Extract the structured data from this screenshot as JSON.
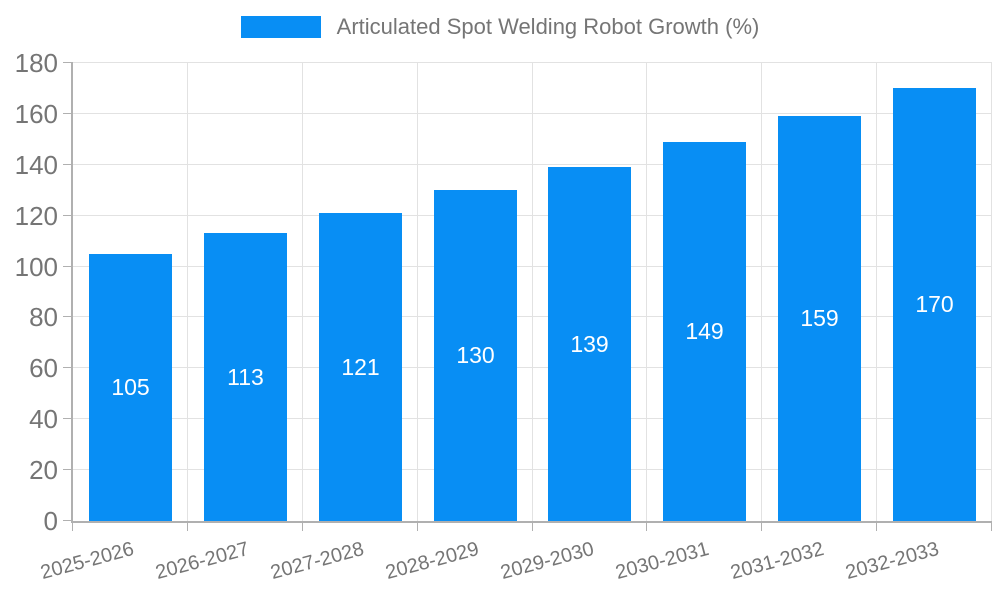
{
  "legend": {
    "label": "Articulated Spot Welding Robot Growth (%)"
  },
  "chart_data": {
    "type": "bar",
    "title": "",
    "series_name": "Articulated Spot Welding Robot Growth (%)",
    "categories": [
      "2025-2026",
      "2026-2027",
      "2027-2028",
      "2028-2029",
      "2029-2030",
      "2030-2031",
      "2031-2032",
      "2032-2033"
    ],
    "values": [
      105,
      113,
      121,
      130,
      139,
      149,
      159,
      170
    ],
    "xlabel": "",
    "ylabel": "",
    "ylim": [
      0,
      180
    ],
    "yticks": [
      0,
      20,
      40,
      60,
      80,
      100,
      120,
      140,
      160,
      180
    ],
    "grid": true,
    "legend_position": "top",
    "value_label_position": "inside-center",
    "x_label_rotation_deg": -15
  },
  "colors": {
    "bar": "#088ef4",
    "grid": "#e2e2e2",
    "axis": "#b0b0b0",
    "tick": "#b0b0b0",
    "label_text": "#757575",
    "value_label_text": "#ffffff",
    "background": "#ffffff"
  }
}
